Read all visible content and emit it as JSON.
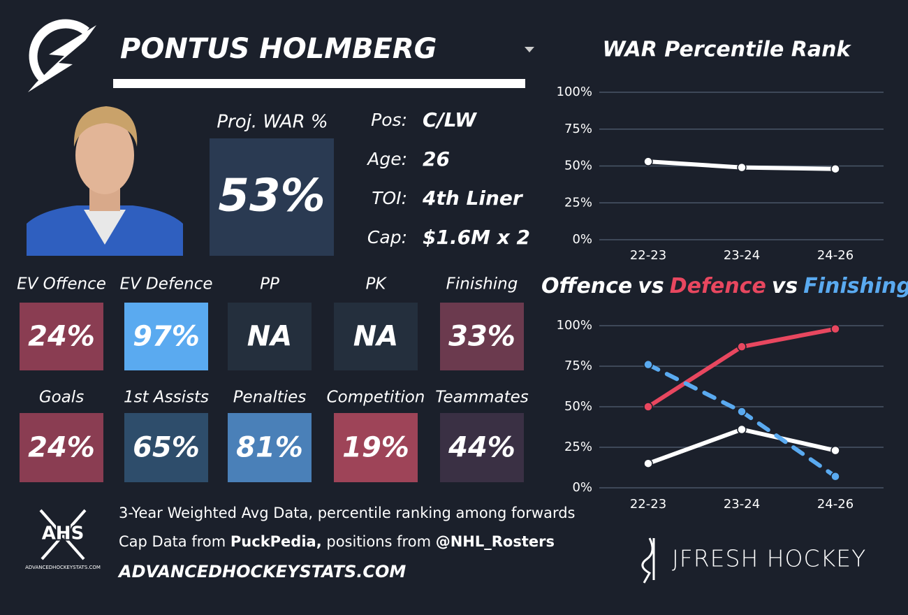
{
  "header": {
    "player": "PONTUS HOLMBERG"
  },
  "proj_war": {
    "label": "Proj. WAR %",
    "value": "53%"
  },
  "info": [
    {
      "label": "Pos:",
      "value": "C/LW"
    },
    {
      "label": "Age:",
      "value": "26"
    },
    {
      "label": "TOI:",
      "value": "4th Liner"
    },
    {
      "label": "Cap:",
      "value": "$1.6M x 2"
    }
  ],
  "tiles": [
    {
      "label": "EV Offence",
      "value": "24%",
      "color": "#8a3d52"
    },
    {
      "label": "EV Defence",
      "value": "97%",
      "color": "#5aaaf0"
    },
    {
      "label": "PP",
      "value": "NA",
      "color": "#242f3d"
    },
    {
      "label": "PK",
      "value": "NA",
      "color": "#242f3d"
    },
    {
      "label": "Finishing",
      "value": "33%",
      "color": "#6b3a4e"
    },
    {
      "label": "Goals",
      "value": "24%",
      "color": "#8a3d52"
    },
    {
      "label": "1st Assists",
      "value": "65%",
      "color": "#2e4d6b"
    },
    {
      "label": "Penalties",
      "value": "81%",
      "color": "#4a80b8"
    },
    {
      "label": "Competition",
      "value": "19%",
      "color": "#9e4458"
    },
    {
      "label": "Teammates",
      "value": "44%",
      "color": "#3a3044"
    }
  ],
  "footer": {
    "note": "3-Year Weighted Avg Data, percentile ranking among forwards",
    "credits": [
      {
        "text": "Cap Data from ",
        "bold": false
      },
      {
        "text": "PuckPedia,",
        "bold": true
      },
      {
        "text": " positions from ",
        "bold": false
      },
      {
        "text": "@NHL_Rosters",
        "bold": true
      }
    ],
    "site": "ADVANCEDHOCKEYSTATS.COM"
  },
  "logos": {
    "ahs": "AHS",
    "ahs_site": "ADVANCEDHOCKEYSTATS.COM",
    "jfresh": "JFRESH HOCKEY"
  },
  "chart_data": [
    {
      "type": "line",
      "title": "WAR Percentile Rank",
      "categories": [
        "22-23",
        "23-24",
        "24-26"
      ],
      "values": [
        53,
        49,
        48
      ],
      "color": "#ffffff",
      "ylim": [
        0,
        100
      ],
      "yticks": [
        {
          "value": 0,
          "label": "0%"
        },
        {
          "value": 25,
          "label": "25%"
        },
        {
          "value": 50,
          "label": "50%"
        },
        {
          "value": 75,
          "label": "75%"
        },
        {
          "value": 100,
          "label": "100%"
        }
      ],
      "grid": true
    },
    {
      "type": "line",
      "title_separator": "vs",
      "categories": [
        "22-23",
        "23-24",
        "24-26"
      ],
      "series": [
        {
          "name": "Offence",
          "color": "#ffffff",
          "linestyle": "solid",
          "values": [
            15,
            36,
            23
          ]
        },
        {
          "name": "Defence",
          "color": "#e8475f",
          "linestyle": "solid",
          "values": [
            50,
            87,
            98
          ]
        },
        {
          "name": "Finishing",
          "color": "#5aaaf0",
          "linestyle": "dashed",
          "values": [
            76,
            47,
            7
          ]
        }
      ],
      "ylim": [
        0,
        100
      ],
      "yticks": [
        {
          "value": 0,
          "label": "0%"
        },
        {
          "value": 25,
          "label": "25%"
        },
        {
          "value": 50,
          "label": "50%"
        },
        {
          "value": 75,
          "label": "75%"
        },
        {
          "value": 100,
          "label": "100%"
        }
      ],
      "grid": true
    }
  ]
}
